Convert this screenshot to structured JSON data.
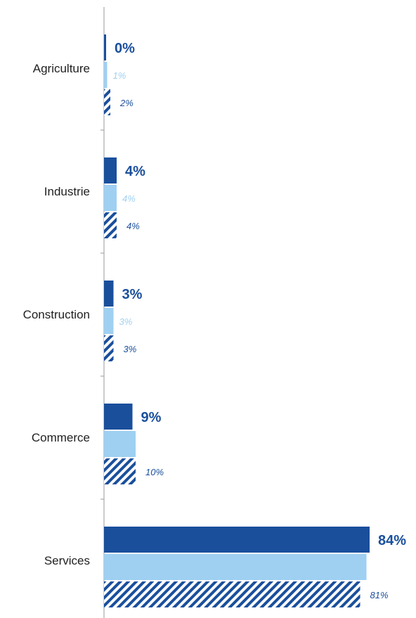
{
  "chart_data": {
    "type": "bar",
    "orientation": "horizontal",
    "categories": [
      "Agriculture",
      "Industrie",
      "Construction",
      "Commerce",
      "Services"
    ],
    "series": [
      {
        "values": [
          0,
          4,
          3,
          9,
          84
        ],
        "labels": [
          "0%",
          "4%",
          "3%",
          "9%",
          "84%"
        ],
        "color": "#1a4f9c",
        "style": "solid"
      },
      {
        "values": [
          1,
          4,
          3,
          10,
          83
        ],
        "labels": [
          "1%",
          "4%",
          "3%",
          "",
          ""
        ],
        "color": "#9fd0f2",
        "style": "solid"
      },
      {
        "values": [
          2,
          4,
          3,
          10,
          81
        ],
        "labels": [
          "2%",
          "4%",
          "3%",
          "10%",
          "81%"
        ],
        "color": "#1a4f9c",
        "style": "hatched"
      }
    ],
    "xlim": [
      0,
      84
    ],
    "grid": false,
    "legend": "none"
  }
}
